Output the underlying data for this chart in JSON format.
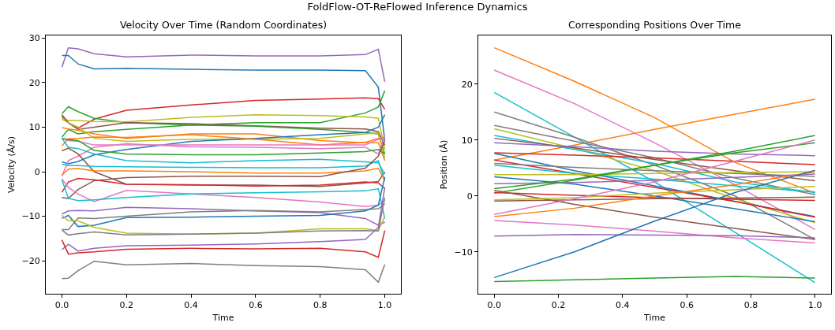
{
  "chart_data": [
    {
      "type": "line",
      "title": "Velocity Over Time (Random Coordinates)",
      "xlabel": "Time",
      "ylabel": "Velocity (Å/s)",
      "annotations": [
        "FoldFlow-OT-ReFlowed Inference Dynamics"
      ],
      "x": [
        0,
        0.02,
        0.05,
        0.1,
        0.2,
        0.4,
        0.6,
        0.8,
        0.94,
        0.98,
        1.0
      ],
      "xlim": [
        -0.05,
        1.05
      ],
      "ylim": [
        -27.4,
        30.6
      ],
      "xticks": [
        {
          "value": 0,
          "label": "0.0"
        },
        {
          "value": 0.2,
          "label": "0.2"
        },
        {
          "value": 0.4,
          "label": "0.4"
        },
        {
          "value": 0.6,
          "label": "0.6"
        },
        {
          "value": 0.8,
          "label": "0.8"
        },
        {
          "value": 1,
          "label": "1.0"
        }
      ],
      "yticks": [
        -20,
        -10,
        0,
        10,
        20,
        30
      ],
      "series": [
        {
          "color": "#9467bd",
          "values": [
            23.5,
            27.8,
            27.6,
            26.5,
            25.8,
            26.2,
            26.0,
            26.0,
            26.3,
            27.5,
            20.2
          ]
        },
        {
          "color": "#1f77b4",
          "values": [
            26.1,
            26.1,
            24.2,
            23.1,
            23.2,
            23.0,
            22.8,
            22.8,
            22.7,
            19,
            7
          ]
        },
        {
          "color": "#d62728",
          "values": [
            12.5,
            11,
            9.8,
            11.8,
            13.8,
            15,
            16,
            16.3,
            16.6,
            16.4,
            14
          ]
        },
        {
          "color": "#2ca02c",
          "values": [
            13,
            14.6,
            13.5,
            12,
            11,
            10.5,
            11,
            11,
            13.2,
            14.5,
            18.2
          ]
        },
        {
          "color": "#bcbd22",
          "values": [
            12,
            11.5,
            11.5,
            11.3,
            11.2,
            12.2,
            12.8,
            12.6,
            12.3,
            12,
            5
          ]
        },
        {
          "color": "#8c564b",
          "values": [
            12.8,
            11,
            9.5,
            10,
            11,
            10.8,
            10.3,
            9.8,
            9.6,
            9,
            6
          ]
        },
        {
          "color": "#2ca02c",
          "values": [
            7.8,
            9.5,
            8.5,
            9,
            9.5,
            10.5,
            10.2,
            9.5,
            8.8,
            8.5,
            4
          ]
        },
        {
          "color": "#ff7f0e",
          "values": [
            9.9,
            9.6,
            9.3,
            8.5,
            7.5,
            8.5,
            8.5,
            7,
            6.5,
            6.5,
            2.5
          ]
        },
        {
          "color": "#bcbd22",
          "values": [
            11.8,
            11,
            10,
            7.5,
            6.8,
            7.3,
            7.3,
            7.5,
            8.5,
            8.7,
            3
          ]
        },
        {
          "color": "#1f77b4",
          "values": [
            2.2,
            1.8,
            2.3,
            3.8,
            5,
            6.8,
            7.5,
            8.3,
            8.8,
            10,
            12.8
          ]
        },
        {
          "color": "#ff7f0e",
          "values": [
            5.8,
            7.4,
            7.5,
            7.8,
            7.7,
            8.3,
            7.3,
            6,
            6.6,
            7.5,
            7.8
          ]
        },
        {
          "color": "#e377c2",
          "values": [
            7.5,
            7,
            6.8,
            6,
            6,
            6,
            6,
            6,
            6,
            7.3,
            7.5
          ]
        },
        {
          "color": "#e377c2",
          "values": [
            -1,
            2.5,
            3.5,
            5.5,
            6.3,
            5.6,
            5.5,
            5.2,
            5.5,
            4,
            8
          ]
        },
        {
          "color": "#2ca02c",
          "values": [
            7.5,
            7.2,
            7,
            4.8,
            4,
            3.8,
            3.8,
            4.2,
            4.5,
            5,
            4
          ]
        },
        {
          "color": "#8c564b",
          "values": [
            4.7,
            5.3,
            4,
            0,
            -2.8,
            -3,
            -3,
            -3.3,
            -2.5,
            -2.2,
            0
          ]
        },
        {
          "color": "#17becf",
          "values": [
            7.5,
            5.5,
            5.2,
            4,
            2.5,
            2,
            2.5,
            2.8,
            2.2,
            2,
            -0.5
          ]
        },
        {
          "color": "#17becf",
          "values": [
            1.7,
            1.4,
            1.4,
            1.2,
            1.1,
            1.0,
            0.9,
            0.9,
            1.3,
            2.5,
            -2
          ]
        },
        {
          "color": "#ff7f0e",
          "values": [
            -0.8,
            0.6,
            0.7,
            0.2,
            0.2,
            0,
            -0.3,
            -0.3,
            0.2,
            0.8,
            -2
          ]
        },
        {
          "color": "#8c564b",
          "values": [
            -5.8,
            -6,
            -4,
            -2,
            -1.3,
            -1,
            -1,
            -1.1,
            0.8,
            3.5,
            7
          ]
        },
        {
          "color": "#d62728",
          "values": [
            -4.6,
            -2.3,
            -1.5,
            -1.8,
            -2.8,
            -2.9,
            -3.2,
            -3,
            -2.3,
            -2.5,
            -3.8
          ]
        },
        {
          "color": "#e377c2",
          "values": [
            -1.6,
            -3.5,
            -5,
            -6.7,
            -4.2,
            -5,
            -5.8,
            -6.8,
            -7.8,
            -7.5,
            -6.5
          ]
        },
        {
          "color": "#17becf",
          "values": [
            -1.8,
            -6,
            -6.5,
            -6.3,
            -5.8,
            -5,
            -4.7,
            -4.5,
            -4.3,
            -3.8,
            -10.5
          ]
        },
        {
          "color": "#9467bd",
          "values": [
            -9.5,
            -8.8,
            -8.7,
            -8.8,
            -8,
            -8.3,
            -8.8,
            -9.2,
            -10.5,
            -12,
            -11.3
          ]
        },
        {
          "color": "#7f7f7f",
          "values": [
            -13,
            -13,
            -10.4,
            -10.5,
            -10,
            -9,
            -8.7,
            -9,
            -8.5,
            -8.3,
            -7.2
          ]
        },
        {
          "color": "#1f77b4",
          "values": [
            -10.5,
            -9.8,
            -12.3,
            -12,
            -10.3,
            -10.2,
            -10,
            -9.8,
            -8.8,
            -7.5,
            -1.2
          ]
        },
        {
          "color": "#bcbd22",
          "values": [
            -9.8,
            -11,
            -11,
            -12.5,
            -13.8,
            -14,
            -13.8,
            -12.8,
            -12.8,
            -13.2,
            -10
          ]
        },
        {
          "color": "#7f7f7f",
          "values": [
            -13.1,
            -14.2,
            -13.9,
            -13.5,
            -14.2,
            -14,
            -13.8,
            -13.3,
            -13.2,
            -13.3,
            -5.8
          ]
        },
        {
          "color": "#9467bd",
          "values": [
            -17.5,
            -16.3,
            -17.8,
            -17.2,
            -16.6,
            -16.5,
            -16.2,
            -15.7,
            -15.2,
            -12.5,
            -3.5
          ]
        },
        {
          "color": "#d62728",
          "values": [
            -15.3,
            -18.5,
            -18.2,
            -18,
            -17.4,
            -17.2,
            -17.3,
            -17.2,
            -18,
            -19.2,
            -13.2
          ]
        },
        {
          "color": "#7f7f7f",
          "values": [
            -24,
            -23.9,
            -22.2,
            -20.1,
            -20.9,
            -20.6,
            -21.1,
            -21.3,
            -22,
            -24.8,
            -20.8
          ]
        }
      ]
    },
    {
      "type": "line",
      "title": "Corresponding Positions Over Time",
      "xlabel": "Time",
      "ylabel": "Position (Å)",
      "x": [
        0,
        0.25,
        0.5,
        0.75,
        1.0
      ],
      "xlim": [
        -0.05,
        1.05
      ],
      "ylim": [
        -17.5,
        28.7
      ],
      "xticks": [
        {
          "value": 0,
          "label": "0.0"
        },
        {
          "value": 0.2,
          "label": "0.2"
        },
        {
          "value": 0.4,
          "label": "0.4"
        },
        {
          "value": 0.6,
          "label": "0.6"
        },
        {
          "value": 0.8,
          "label": "0.8"
        },
        {
          "value": 1,
          "label": "1.0"
        }
      ],
      "yticks": [
        -10,
        0,
        10,
        20
      ],
      "series": [
        {
          "color": "#ff7f0e",
          "values": [
            26.5,
            20.5,
            14,
            6,
            0.5
          ]
        },
        {
          "color": "#ff7f0e",
          "values": [
            6.4,
            9.1,
            11.9,
            14.6,
            17.3
          ]
        },
        {
          "color": "#e377c2",
          "values": [
            22.5,
            16.5,
            9.5,
            2,
            -6
          ]
        },
        {
          "color": "#17becf",
          "values": [
            18.5,
            10.5,
            2.5,
            -6.5,
            -15.5
          ]
        },
        {
          "color": "#7f7f7f",
          "values": [
            15,
            10.5,
            5.5,
            0,
            -7.8
          ]
        },
        {
          "color": "#7f7f7f",
          "values": [
            12.6,
            9.8,
            6.8,
            3.2,
            0.2
          ]
        },
        {
          "color": "#bcbd22",
          "values": [
            12,
            8.5,
            4.5,
            -0.5,
            -4.8
          ]
        },
        {
          "color": "#17becf",
          "values": [
            10.8,
            8.3,
            5.8,
            2.5,
            0.6
          ]
        },
        {
          "color": "#8c564b",
          "values": [
            10.3,
            8.6,
            6.5,
            4.5,
            2.7
          ]
        },
        {
          "color": "#9467bd",
          "values": [
            9.5,
            8.8,
            8,
            7.5,
            7.2
          ]
        },
        {
          "color": "#d62728",
          "values": [
            7.7,
            7.3,
            6.8,
            6.2,
            5.6
          ]
        },
        {
          "color": "#1f77b4",
          "values": [
            7.6,
            4.5,
            1.8,
            -1,
            -3.7
          ]
        },
        {
          "color": "#d62728",
          "values": [
            6.4,
            4,
            1.5,
            -1,
            -3.8
          ]
        },
        {
          "color": "#7f7f7f",
          "values": [
            5.8,
            5.1,
            4.5,
            4,
            3.5
          ]
        },
        {
          "color": "#17becf",
          "values": [
            5.5,
            4,
            3,
            1.8,
            0.7
          ]
        },
        {
          "color": "#bcbd22",
          "values": [
            3.8,
            3.8,
            4,
            4.2,
            4.3
          ]
        },
        {
          "color": "#1f77b4",
          "values": [
            3.4,
            2.1,
            0,
            -2.3,
            -4.6
          ]
        },
        {
          "color": "#9467bd",
          "values": [
            2.2,
            2.4,
            2.8,
            3.3,
            3.9
          ]
        },
        {
          "color": "#2ca02c",
          "values": [
            1.3,
            3,
            5.5,
            8,
            10.8
          ]
        },
        {
          "color": "#2ca02c",
          "values": [
            0.5,
            2.8,
            5.5,
            7.7,
            9.5
          ]
        },
        {
          "color": "#d62728",
          "values": [
            0.6,
            0.1,
            -0.3,
            -0.6,
            -0.8
          ]
        },
        {
          "color": "#8c564b",
          "values": [
            1,
            -1.5,
            -3.8,
            -5.8,
            -7.8
          ]
        },
        {
          "color": "#bcbd22",
          "values": [
            -0.7,
            -0.3,
            0.5,
            1.1,
            1.7
          ]
        },
        {
          "color": "#8c564b",
          "values": [
            -0.9,
            -0.7,
            -0.5,
            -0.4,
            -0.2
          ]
        },
        {
          "color": "#e377c2",
          "values": [
            -3.3,
            -0.5,
            2.5,
            6.2,
            10
          ]
        },
        {
          "color": "#ff7f0e",
          "values": [
            -3.7,
            -2.2,
            0,
            2,
            4.3
          ]
        },
        {
          "color": "#e377c2",
          "values": [
            -4.4,
            -5.2,
            -6.3,
            -7.5,
            -8.4
          ]
        },
        {
          "color": "#9467bd",
          "values": [
            -7.2,
            -6.9,
            -7,
            -7.1,
            -7.5
          ]
        },
        {
          "color": "#1f77b4",
          "values": [
            -14.6,
            -10,
            -4.5,
            0.6,
            4.6
          ]
        },
        {
          "color": "#2ca02c",
          "values": [
            -15.3,
            -15,
            -14.7,
            -14.4,
            -14.7
          ]
        }
      ]
    }
  ]
}
